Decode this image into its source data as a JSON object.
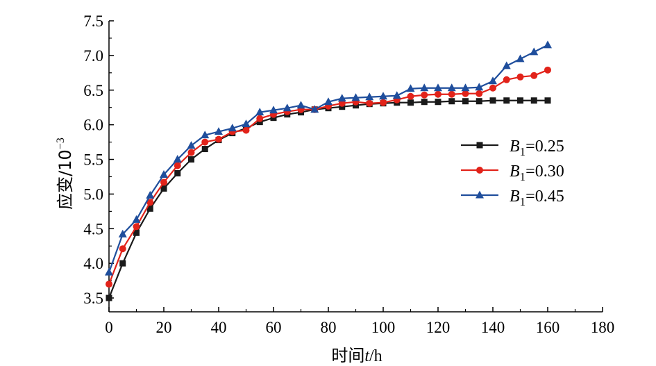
{
  "chart_data": {
    "type": "line",
    "title": "",
    "xlabel": "时间t/h",
    "ylabel": "应变/10⁻³",
    "xlim": [
      0,
      180
    ],
    "ylim": [
      3.3,
      7.5
    ],
    "xticks": [
      0,
      20,
      40,
      60,
      80,
      100,
      120,
      140,
      160,
      180
    ],
    "yticks": [
      3.5,
      4.0,
      4.5,
      5.0,
      5.5,
      6.0,
      6.5,
      7.0,
      7.5
    ],
    "grid": false,
    "legend_position": "right",
    "x": [
      0,
      5,
      10,
      15,
      20,
      25,
      30,
      35,
      40,
      45,
      50,
      55,
      60,
      65,
      70,
      75,
      80,
      85,
      90,
      95,
      100,
      105,
      110,
      115,
      120,
      125,
      130,
      135,
      140,
      145,
      150,
      155,
      160
    ],
    "series": [
      {
        "name": "B1=0.25",
        "color": "#1a1a1a",
        "marker": "square",
        "values": [
          3.5,
          4.0,
          4.44,
          4.79,
          5.08,
          5.3,
          5.5,
          5.65,
          5.78,
          5.88,
          5.95,
          6.04,
          6.1,
          6.15,
          6.18,
          6.22,
          6.24,
          6.26,
          6.28,
          6.3,
          6.31,
          6.32,
          6.32,
          6.33,
          6.33,
          6.34,
          6.34,
          6.34,
          6.35,
          6.35,
          6.35,
          6.35,
          6.35
        ]
      },
      {
        "name": "B1=0.30",
        "color": "#e2231a",
        "marker": "circle",
        "values": [
          3.7,
          4.21,
          4.53,
          4.88,
          5.17,
          5.41,
          5.6,
          5.75,
          5.79,
          5.9,
          5.92,
          6.09,
          6.15,
          6.19,
          6.22,
          6.22,
          6.27,
          6.31,
          6.33,
          6.31,
          6.32,
          6.36,
          6.41,
          6.43,
          6.44,
          6.44,
          6.45,
          6.45,
          6.53,
          6.65,
          6.69,
          6.71,
          6.79
        ]
      },
      {
        "name": "B1=0.45",
        "color": "#1f4e9c",
        "marker": "triangle",
        "values": [
          3.87,
          4.42,
          4.63,
          4.98,
          5.28,
          5.5,
          5.7,
          5.85,
          5.9,
          5.95,
          6.01,
          6.18,
          6.21,
          6.24,
          6.28,
          6.22,
          6.33,
          6.38,
          6.39,
          6.4,
          6.41,
          6.42,
          6.52,
          6.53,
          6.53,
          6.53,
          6.53,
          6.54,
          6.63,
          6.85,
          6.95,
          7.05,
          7.15
        ]
      }
    ],
    "legend": [
      {
        "label_var": "B",
        "label_sub": "1",
        "label_rest": "=0.25"
      },
      {
        "label_var": "B",
        "label_sub": "1",
        "label_rest": "=0.30"
      },
      {
        "label_var": "B",
        "label_sub": "1",
        "label_rest": "=0.45"
      }
    ],
    "axis_text": {
      "x_main": "时间",
      "x_var": "t",
      "x_unit": "/h",
      "y_main": "应变/10",
      "y_exp": "−3"
    }
  }
}
